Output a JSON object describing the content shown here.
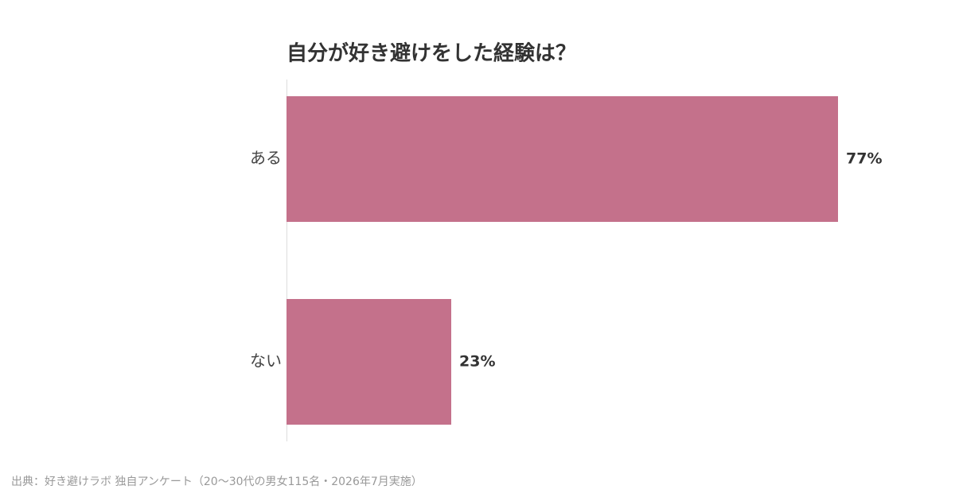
{
  "chart_data": {
    "type": "bar",
    "orientation": "horizontal",
    "title": "自分が好き避けをした経験は？",
    "categories": [
      "ある",
      "ない"
    ],
    "values": [
      77,
      23
    ],
    "value_labels": [
      "77%",
      "23%"
    ],
    "color": "#c4718b",
    "xlim": [
      0,
      80
    ],
    "source": "出典：好き避けラボ 独自アンケート（20〜30代の男女115名・2026年7月実施）"
  }
}
